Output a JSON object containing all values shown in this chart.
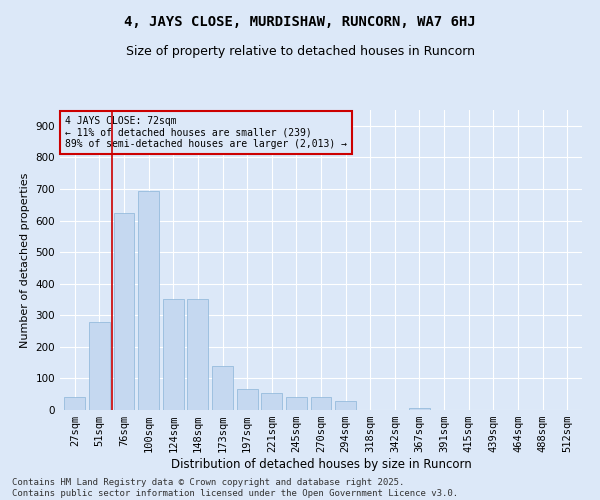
{
  "title1": "4, JAYS CLOSE, MURDISHAW, RUNCORN, WA7 6HJ",
  "title2": "Size of property relative to detached houses in Runcorn",
  "xlabel": "Distribution of detached houses by size in Runcorn",
  "ylabel": "Number of detached properties",
  "categories": [
    "27sqm",
    "51sqm",
    "76sqm",
    "100sqm",
    "124sqm",
    "148sqm",
    "173sqm",
    "197sqm",
    "221sqm",
    "245sqm",
    "270sqm",
    "294sqm",
    "318sqm",
    "342sqm",
    "367sqm",
    "391sqm",
    "415sqm",
    "439sqm",
    "464sqm",
    "488sqm",
    "512sqm"
  ],
  "values": [
    40,
    280,
    625,
    695,
    350,
    350,
    140,
    65,
    55,
    40,
    40,
    30,
    0,
    0,
    5,
    0,
    0,
    0,
    0,
    0,
    0
  ],
  "bar_color": "#c5d8f0",
  "bar_edge_color": "#8ab4d8",
  "vline_x": 1.5,
  "vline_color": "#cc0000",
  "ylim": [
    0,
    950
  ],
  "yticks": [
    0,
    100,
    200,
    300,
    400,
    500,
    600,
    700,
    800,
    900
  ],
  "annotation_text": "4 JAYS CLOSE: 72sqm\n← 11% of detached houses are smaller (239)\n89% of semi-detached houses are larger (2,013) →",
  "annotation_box_color": "#cc0000",
  "footnote": "Contains HM Land Registry data © Crown copyright and database right 2025.\nContains public sector information licensed under the Open Government Licence v3.0.",
  "bg_color": "#dce8f8",
  "plot_bg_color": "#dce8f8",
  "title1_fontsize": 10,
  "title2_fontsize": 9,
  "xlabel_fontsize": 8.5,
  "ylabel_fontsize": 8,
  "tick_fontsize": 7.5,
  "footnote_fontsize": 6.5
}
